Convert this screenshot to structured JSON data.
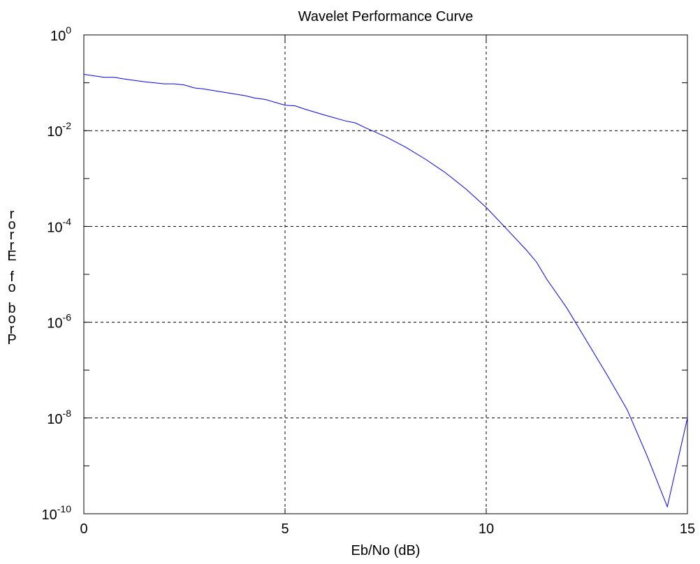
{
  "chart_data": {
    "type": "line",
    "title": "Wavelet Performance Curve",
    "xlabel": "Eb/No (dB)",
    "ylabel": "Prob of Error",
    "xlim": [
      0,
      15
    ],
    "ylim": [
      1e-10,
      1
    ],
    "y_scale": "log",
    "grid": true,
    "x_ticks": [
      0,
      5,
      10,
      15
    ],
    "x_tick_labels": [
      "0",
      "5",
      "10",
      "15"
    ],
    "y_ticks": [
      {
        "exp": 0,
        "base": "10",
        "sup": "0"
      },
      {
        "exp": -2,
        "base": "10",
        "sup": "-2"
      },
      {
        "exp": -4,
        "base": "10",
        "sup": "-4"
      },
      {
        "exp": -6,
        "base": "10",
        "sup": "-6"
      },
      {
        "exp": -8,
        "base": "10",
        "sup": "-8"
      },
      {
        "exp": -10,
        "base": "10",
        "sup": "-10"
      }
    ],
    "line_color": "#0000ff",
    "series": [
      {
        "x": [
          0,
          0.5,
          0.75,
          1,
          1.5,
          2,
          2.25,
          2.5,
          2.75,
          3,
          3.5,
          4,
          4.25,
          4.5,
          5,
          5.25,
          5.5,
          6,
          6.5,
          6.75,
          7,
          7.5,
          8,
          8.5,
          9,
          9.5,
          10,
          10.5,
          11,
          11.25,
          11.5,
          12,
          12.5,
          13,
          13.5,
          14,
          14.5,
          15
        ],
        "y": [
          0.15,
          0.13,
          0.13,
          0.12,
          0.105,
          0.095,
          0.095,
          0.09,
          0.078,
          0.074,
          0.063,
          0.054,
          0.048,
          0.045,
          0.034,
          0.033,
          0.028,
          0.021,
          0.016,
          0.0145,
          0.0115,
          0.0075,
          0.0045,
          0.0025,
          0.0013,
          0.0006,
          0.00025,
          9e-05,
          3.2e-05,
          1.8e-05,
          8e-06,
          2e-06,
          4e-07,
          8e-08,
          1.5e-08,
          1.6e-09,
          1.4e-10,
          1e-08
        ]
      }
    ]
  }
}
